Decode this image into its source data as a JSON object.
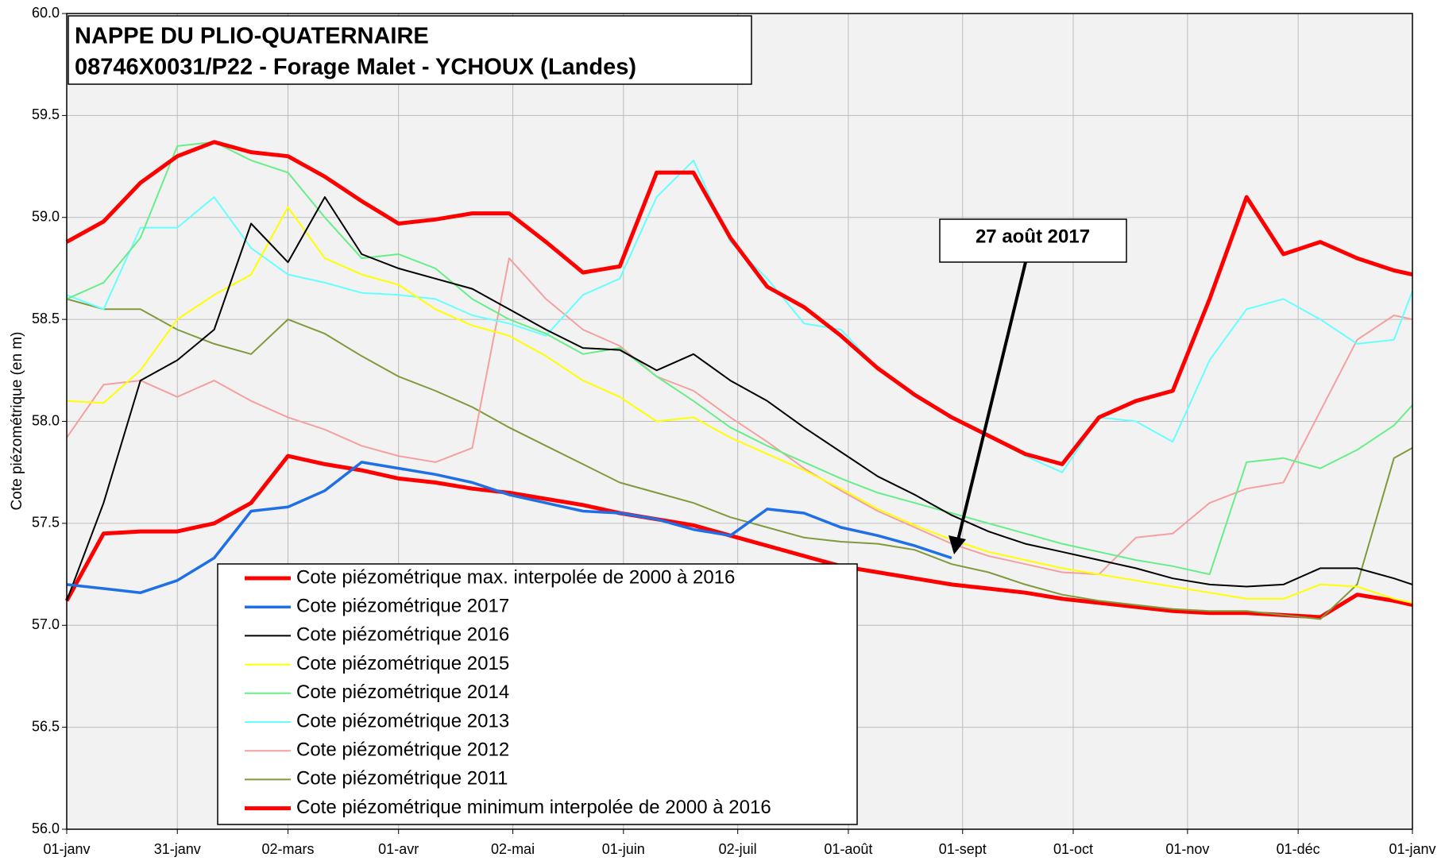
{
  "chart_data": {
    "type": "line",
    "title": "NAPPE DU PLIO-QUATERNAIRE",
    "subtitle": "08746X0031/P22  - Forage Malet - YCHOUX (Landes)",
    "y_label": "Cote piézométrique (en m)",
    "annotation": "27 août 2017",
    "grid": true,
    "xlim": [
      0,
      365
    ],
    "xticks": [
      {
        "value": 0,
        "label": "01-janv"
      },
      {
        "value": 30,
        "label": "31-janv"
      },
      {
        "value": 60,
        "label": "02-mars"
      },
      {
        "value": 90,
        "label": "01-avr"
      },
      {
        "value": 121,
        "label": "02-mai"
      },
      {
        "value": 151,
        "label": "01-juin"
      },
      {
        "value": 182,
        "label": "02-juil"
      },
      {
        "value": 212,
        "label": "01-août"
      },
      {
        "value": 243,
        "label": "01-sept"
      },
      {
        "value": 273,
        "label": "01-oct"
      },
      {
        "value": 304,
        "label": "01-nov"
      },
      {
        "value": 334,
        "label": "01-déc"
      },
      {
        "value": 365,
        "label": "01-janv"
      }
    ],
    "ylim": [
      56,
      60
    ],
    "yticks": [
      {
        "value": 56,
        "label": "56.0"
      },
      56.5,
      {
        "value": 57,
        "label": "57.0"
      },
      57.5,
      {
        "value": 58,
        "label": "58.0"
      },
      58.5,
      {
        "value": 59,
        "label": "59.0"
      },
      59.5,
      {
        "value": 60,
        "label": "60.0"
      }
    ],
    "x": [
      0,
      10,
      20,
      30,
      40,
      50,
      60,
      70,
      80,
      90,
      100,
      110,
      120,
      130,
      140,
      150,
      160,
      170,
      180,
      190,
      200,
      210,
      220,
      230,
      240,
      250,
      260,
      270,
      280,
      290,
      300,
      310,
      320,
      330,
      340,
      350,
      360,
      365
    ],
    "series": [
      {
        "name": "Cote piézométrique max. interpolée de 2000 à 2016",
        "color": "#ff0000",
        "width": 5,
        "values": [
          58.88,
          58.98,
          59.17,
          59.3,
          59.37,
          59.32,
          59.3,
          59.2,
          59.08,
          58.97,
          58.99,
          59.02,
          59.02,
          58.88,
          58.73,
          58.76,
          59.22,
          59.22,
          58.9,
          58.66,
          58.56,
          58.42,
          58.26,
          58.13,
          58.02,
          57.93,
          57.84,
          57.79,
          58.02,
          58.1,
          58.15,
          58.6,
          59.1,
          58.82,
          58.88,
          58.8,
          58.74,
          58.72
        ]
      },
      {
        "name": "Cote piézométrique 2017",
        "color": "#1f6fe6",
        "width": 3.5,
        "values": [
          57.2,
          57.18,
          57.16,
          57.22,
          57.33,
          57.56,
          57.58,
          57.66,
          57.8,
          57.77,
          57.74,
          57.7,
          57.64,
          57.6,
          57.56,
          57.55,
          57.52,
          57.47,
          57.44,
          57.57,
          57.55,
          57.48,
          57.44,
          57.39,
          57.33,
          null,
          null,
          null,
          null,
          null,
          null,
          null,
          null,
          null,
          null,
          null,
          null,
          null
        ]
      },
      {
        "name": "Cote piézométrique 2016",
        "color": "#000000",
        "width": 2,
        "values": [
          57.12,
          57.6,
          58.2,
          58.3,
          58.45,
          58.97,
          58.78,
          59.1,
          58.82,
          58.75,
          58.7,
          58.65,
          58.55,
          58.45,
          58.36,
          58.35,
          58.25,
          58.33,
          58.2,
          58.1,
          57.97,
          57.85,
          57.73,
          57.64,
          57.54,
          57.46,
          57.4,
          57.36,
          57.32,
          57.28,
          57.23,
          57.2,
          57.19,
          57.2,
          57.28,
          57.28,
          57.23,
          57.2
        ]
      },
      {
        "name": "Cote piézométrique 2015",
        "color": "#ffff00",
        "width": 2,
        "values": [
          58.1,
          58.09,
          58.25,
          58.5,
          58.62,
          58.72,
          59.05,
          58.8,
          58.72,
          58.67,
          58.55,
          58.47,
          58.42,
          58.32,
          58.2,
          58.12,
          58.0,
          58.02,
          57.92,
          57.84,
          57.76,
          57.67,
          57.57,
          57.49,
          57.42,
          57.36,
          57.32,
          57.28,
          57.25,
          57.22,
          57.19,
          57.16,
          57.13,
          57.13,
          57.2,
          57.19,
          57.13,
          57.11
        ]
      },
      {
        "name": "Cote piézométrique 2014",
        "color": "#66ee88",
        "width": 2,
        "values": [
          58.6,
          58.68,
          58.9,
          59.35,
          59.37,
          59.28,
          59.22,
          59.0,
          58.8,
          58.82,
          58.75,
          58.6,
          58.5,
          58.43,
          58.33,
          58.36,
          58.22,
          58.1,
          57.97,
          57.88,
          57.8,
          57.72,
          57.65,
          57.6,
          57.55,
          57.5,
          57.45,
          57.4,
          57.36,
          57.32,
          57.29,
          57.25,
          57.8,
          57.82,
          57.77,
          57.86,
          57.98,
          58.08
        ]
      },
      {
        "name": "Cote piézométrique 2013",
        "color": "#66ffff",
        "width": 2,
        "values": [
          58.62,
          58.55,
          58.95,
          58.95,
          59.1,
          58.85,
          58.72,
          58.68,
          58.63,
          58.62,
          58.6,
          58.52,
          58.48,
          58.42,
          58.62,
          58.7,
          59.1,
          59.28,
          58.88,
          58.7,
          58.48,
          58.45,
          58.26,
          58.13,
          58.02,
          57.93,
          57.83,
          57.75,
          58.02,
          58.0,
          57.9,
          58.3,
          58.55,
          58.6,
          58.5,
          58.38,
          58.4,
          58.64
        ]
      },
      {
        "name": "Cote piézométrique 2012",
        "color": "#f4a0a0",
        "width": 2,
        "values": [
          57.92,
          58.18,
          58.2,
          58.12,
          58.2,
          58.1,
          58.02,
          57.96,
          57.88,
          57.83,
          57.8,
          57.87,
          58.8,
          58.6,
          58.45,
          58.37,
          58.22,
          58.15,
          58.02,
          57.9,
          57.77,
          57.66,
          57.56,
          57.48,
          57.4,
          57.34,
          57.3,
          57.26,
          57.25,
          57.43,
          57.45,
          57.6,
          57.67,
          57.7,
          58.05,
          58.4,
          58.52,
          58.5
        ]
      },
      {
        "name": "Cote piézométrique 2011",
        "color": "#7f9a3c",
        "width": 2,
        "values": [
          58.6,
          58.55,
          58.55,
          58.45,
          58.38,
          58.33,
          58.5,
          58.43,
          58.32,
          58.22,
          58.15,
          58.07,
          57.97,
          57.88,
          57.79,
          57.7,
          57.65,
          57.6,
          57.53,
          57.48,
          57.43,
          57.41,
          57.4,
          57.37,
          57.3,
          57.26,
          57.2,
          57.15,
          57.12,
          57.1,
          57.08,
          57.07,
          57.07,
          57.05,
          57.03,
          57.2,
          57.82,
          57.87
        ]
      },
      {
        "name": "Cote piézométrique minimum interpolée de 2000 à 2016",
        "color": "#ff0000",
        "width": 5,
        "values": [
          57.12,
          57.45,
          57.46,
          57.46,
          57.5,
          57.6,
          57.83,
          57.79,
          57.76,
          57.72,
          57.7,
          57.67,
          57.65,
          57.62,
          57.59,
          57.55,
          57.52,
          57.49,
          57.44,
          57.39,
          57.34,
          57.29,
          57.26,
          57.23,
          57.2,
          57.18,
          57.16,
          57.13,
          57.11,
          57.09,
          57.07,
          57.06,
          57.06,
          57.05,
          57.04,
          57.15,
          57.12,
          57.1
        ]
      }
    ]
  }
}
